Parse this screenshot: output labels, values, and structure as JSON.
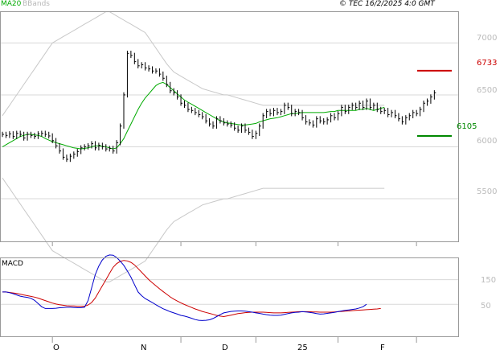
{
  "header": {
    "ma_label": "MA20",
    "bb_label": "BBands",
    "copyright": "© TEC 16/2/2025 4:0 GMT"
  },
  "macd_label": "MACD",
  "levels": {
    "resistance": {
      "label": "6733",
      "value": 6733,
      "color": "#cc0000"
    },
    "support": {
      "label": "6105",
      "value": 6105,
      "color": "#008800"
    }
  },
  "colors": {
    "price": "#000000",
    "ma": "#00aa00",
    "bbands": "#c8c8c8",
    "macd": "#0000cc",
    "signal": "#cc0000",
    "grid": "#d8d8d8",
    "axis": "#999999"
  },
  "chart_data": [
    {
      "type": "ohlc",
      "panel": "price",
      "ylim": [
        5090,
        7305
      ],
      "y_ticks": [
        5500,
        6000,
        6500,
        7000
      ],
      "y_tick_labels": [
        "5500",
        "6000",
        "6500",
        "7000"
      ],
      "x_ticks": [
        14,
        50,
        71,
        94,
        116
      ],
      "x_tick_labels": [
        "O",
        "N",
        "D",
        "25",
        "F"
      ],
      "x_count": 128,
      "closes": [
        6120,
        6110,
        6125,
        6100,
        6130,
        6120,
        6085,
        6120,
        6110,
        6100,
        6125,
        6130,
        6120,
        6105,
        6060,
        6010,
        5960,
        5900,
        5880,
        5910,
        5930,
        5955,
        5990,
        6000,
        6010,
        6030,
        5990,
        6015,
        6000,
        5980,
        5985,
        5960,
        6040,
        6200,
        6500,
        6900,
        6880,
        6820,
        6780,
        6790,
        6760,
        6750,
        6730,
        6730,
        6700,
        6660,
        6600,
        6540,
        6520,
        6480,
        6420,
        6400,
        6360,
        6350,
        6330,
        6310,
        6290,
        6250,
        6220,
        6200,
        6270,
        6250,
        6230,
        6220,
        6210,
        6180,
        6160,
        6200,
        6160,
        6140,
        6100,
        6130,
        6200,
        6300,
        6340,
        6320,
        6350,
        6330,
        6340,
        6400,
        6380,
        6320,
        6340,
        6330,
        6280,
        6240,
        6230,
        6210,
        6270,
        6250,
        6240,
        6260,
        6300,
        6280,
        6320,
        6380,
        6340,
        6380,
        6400,
        6380,
        6420,
        6380,
        6440,
        6380,
        6400,
        6360,
        6340,
        6350,
        6310,
        6330,
        6300,
        6270,
        6240,
        6280,
        6300,
        6330,
        6320,
        6360,
        6420,
        6440,
        6480,
        6520
      ],
      "ma20": [
        6000,
        6020,
        6040,
        6060,
        6080,
        6100,
        6110,
        6120,
        6120,
        6115,
        6110,
        6100,
        6080,
        6065,
        6050,
        6040,
        6030,
        6020,
        6010,
        6000,
        5990,
        5985,
        5980,
        5985,
        5990,
        6000,
        6010,
        6010,
        6005,
        6000,
        5990,
        5980,
        5990,
        6030,
        6080,
        6150,
        6220,
        6290,
        6360,
        6420,
        6470,
        6510,
        6550,
        6590,
        6610,
        6620,
        6600,
        6570,
        6540,
        6510,
        6480,
        6450,
        6430,
        6410,
        6390,
        6370,
        6350,
        6330,
        6310,
        6290,
        6270,
        6250,
        6240,
        6230,
        6225,
        6220,
        6215,
        6210,
        6210,
        6215,
        6220,
        6225,
        6240,
        6250,
        6260,
        6270,
        6275,
        6280,
        6290,
        6300,
        6310,
        6320,
        6320,
        6325,
        6330,
        6330,
        6330,
        6330,
        6330,
        6330,
        6330,
        6335,
        6340,
        6340,
        6350,
        6350,
        6350,
        6350,
        6350,
        6350,
        6360,
        6360,
        6370,
        6360,
        6350,
        6360,
        6370,
        6380
      ],
      "bb_upper": [
        6300,
        6350,
        6400,
        6450,
        6500,
        6550,
        6600,
        6650,
        6700,
        6750,
        6800,
        6850,
        6900,
        6950,
        7000,
        7020,
        7040,
        7060,
        7080,
        7100,
        7120,
        7140,
        7160,
        7180,
        7200,
        7220,
        7240,
        7260,
        7280,
        7300,
        7300,
        7280,
        7260,
        7240,
        7220,
        7200,
        7180,
        7160,
        7140,
        7120,
        7100,
        7050,
        7000,
        6950,
        6900,
        6850,
        6800,
        6760,
        6720,
        6700,
        6680,
        6660,
        6640,
        6620,
        6600,
        6580,
        6560,
        6550,
        6540,
        6530,
        6520,
        6510,
        6500,
        6500,
        6490,
        6480,
        6470,
        6460,
        6450,
        6440,
        6430,
        6420,
        6410,
        6400,
        6400,
        6400,
        6400,
        6400,
        6400,
        6400,
        6400,
        6400,
        6400,
        6400,
        6400,
        6400,
        6400,
        6400,
        6400,
        6400,
        6400,
        6400,
        6400,
        6400,
        6400,
        6400,
        6400,
        6400,
        6400,
        6400,
        6400,
        6400,
        6400,
        6400,
        6400,
        6400,
        6400,
        6400
      ],
      "bb_lower": [
        5700,
        5650,
        5600,
        5550,
        5500,
        5450,
        5400,
        5350,
        5300,
        5250,
        5200,
        5150,
        5100,
        5050,
        5000,
        4980,
        4960,
        4940,
        4920,
        4900,
        4880,
        4860,
        4840,
        4820,
        4800,
        4780,
        4760,
        4740,
        4720,
        4700,
        4700,
        4720,
        4740,
        4760,
        4780,
        4800,
        4820,
        4840,
        4860,
        4880,
        4900,
        4950,
        5000,
        5050,
        5100,
        5150,
        5200,
        5240,
        5280,
        5300,
        5320,
        5340,
        5360,
        5380,
        5400,
        5420,
        5440,
        5450,
        5460,
        5470,
        5480,
        5490,
        5500,
        5500,
        5510,
        5520,
        5530,
        5540,
        5550,
        5560,
        5570,
        5580,
        5590,
        5600,
        5600,
        5600,
        5600,
        5600,
        5600,
        5600,
        5600,
        5600,
        5600,
        5600,
        5600,
        5600,
        5600,
        5600,
        5600,
        5600,
        5600,
        5600,
        5600,
        5600,
        5600,
        5600,
        5600,
        5600,
        5600,
        5600,
        5600,
        5600,
        5600,
        5600,
        5600,
        5600,
        5600,
        5600
      ]
    },
    {
      "type": "line",
      "panel": "macd",
      "ylim": [
        -80,
        240
      ],
      "y_ticks": [
        150,
        50
      ],
      "y_tick_labels": [
        "150",
        "50"
      ],
      "series": [
        {
          "values": [
            100,
            100,
            97,
            93,
            88,
            83,
            80,
            78,
            74,
            66,
            53,
            40,
            33,
            33,
            33,
            34,
            36,
            37,
            38,
            38,
            37,
            36,
            36,
            38,
            65,
            117,
            170,
            205,
            230,
            245,
            250,
            249,
            240,
            225,
            208,
            185,
            160,
            130,
            100,
            85,
            73,
            65,
            57,
            48,
            40,
            32,
            26,
            20,
            15,
            10,
            5,
            2,
            -2,
            -7,
            -12,
            -15,
            -16,
            -15,
            -13,
            -8,
            0,
            8,
            15,
            18,
            21,
            22,
            23,
            23,
            22,
            20,
            18,
            15,
            13,
            10,
            8,
            6,
            5,
            5,
            6,
            9,
            12,
            15,
            17,
            18,
            20,
            19,
            17,
            15,
            12,
            10,
            11,
            13,
            15,
            17,
            20,
            23,
            25,
            27,
            29,
            31,
            35,
            40,
            50
          ]
        },
        {
          "values": [
            100,
            100,
            98,
            96,
            94,
            91,
            88,
            85,
            82,
            79,
            75,
            70,
            65,
            60,
            55,
            51,
            48,
            46,
            44,
            43,
            43,
            42,
            42,
            42,
            47,
            57,
            75,
            100,
            125,
            150,
            175,
            200,
            215,
            224,
            228,
            226,
            220,
            210,
            195,
            180,
            165,
            150,
            137,
            125,
            113,
            102,
            91,
            80,
            71,
            63,
            56,
            49,
            43,
            37,
            31,
            26,
            21,
            17,
            13,
            9,
            5,
            2,
            0,
            3,
            6,
            9,
            12,
            14,
            16,
            17,
            18,
            18,
            18,
            18,
            17,
            16,
            15,
            15,
            15,
            16,
            17,
            18,
            19,
            20,
            20,
            20,
            20,
            19,
            19,
            18,
            18,
            18,
            18,
            19,
            20,
            21,
            22,
            23,
            24,
            25,
            26,
            27,
            28,
            29,
            30,
            31,
            33
          ]
        }
      ]
    }
  ]
}
